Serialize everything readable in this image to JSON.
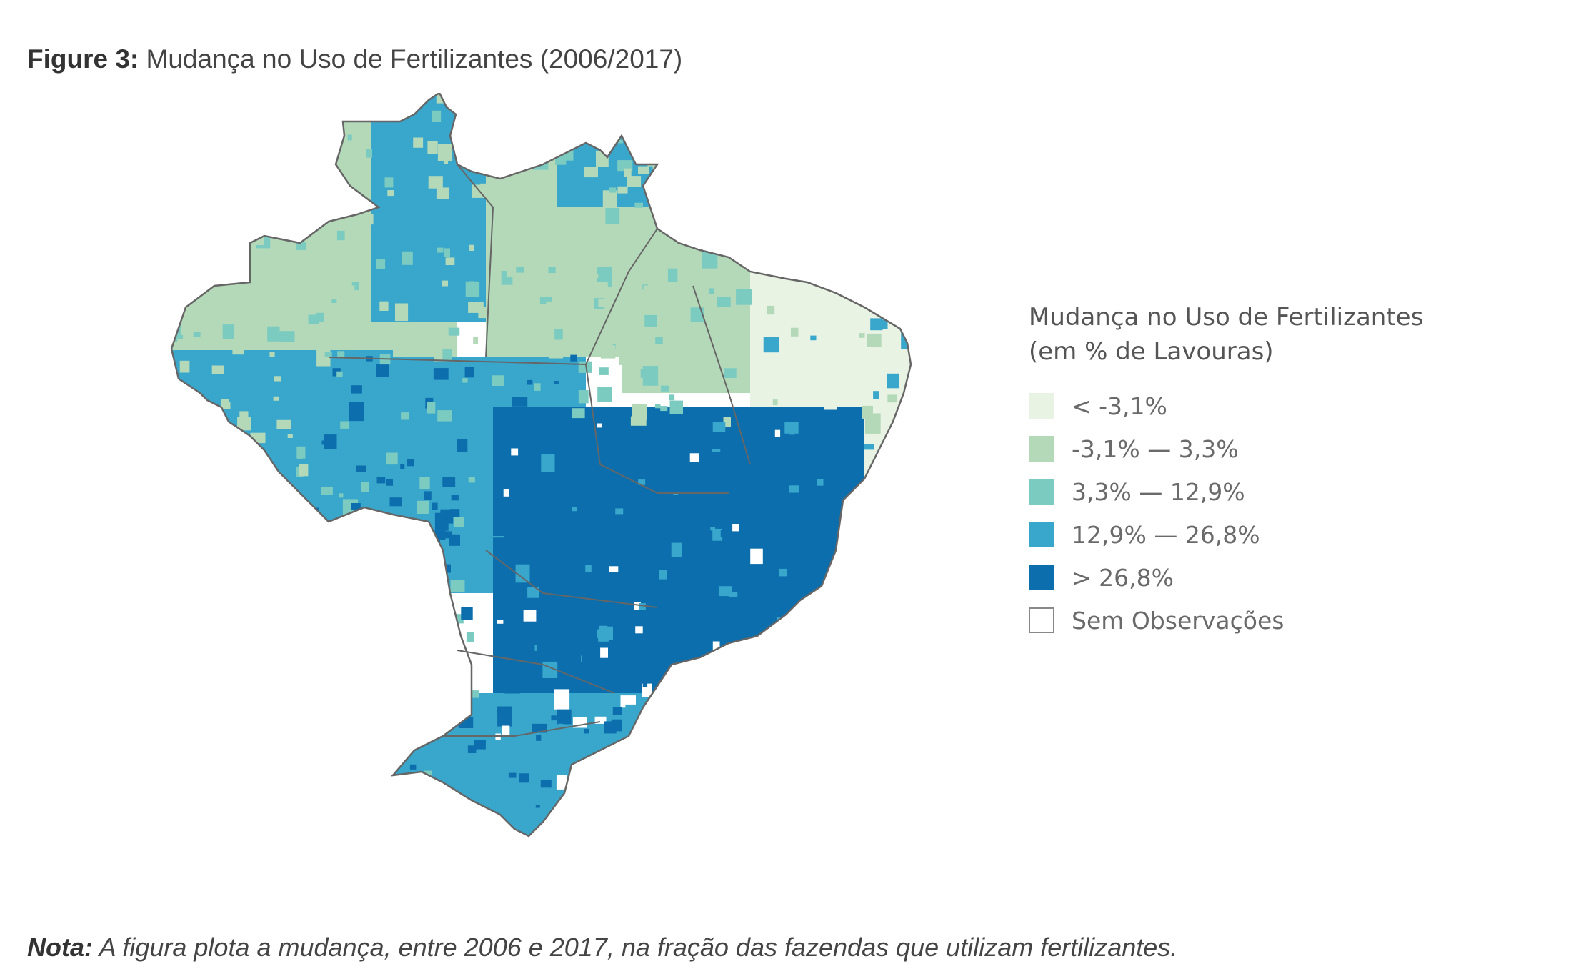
{
  "figure": {
    "label": "Figure 3:",
    "title": "Mudança no Uso de Fertilizantes (2006/2017)"
  },
  "legend": {
    "title_line1": "Mudança no Uso de Fertilizantes",
    "title_line2": "(em % de Lavouras)",
    "items": [
      {
        "label": "< -3,1%",
        "color": "#e8f3e4"
      },
      {
        "label": "-3,1% — 3,3%",
        "color": "#b4d9b9"
      },
      {
        "label": "3,3% — 12,9%",
        "color": "#7ccbc1"
      },
      {
        "label": "12,9% — 26,8%",
        "color": "#39a6cc"
      },
      {
        "label": "> 26,8%",
        "color": "#0c6ead"
      },
      {
        "label": "Sem Observações",
        "color": "#ffffff"
      }
    ]
  },
  "note": {
    "label": "Nota:",
    "text": " A figura plota a mudança, entre 2006 e 2017, na fração das fazendas que utilizam fertilizantes."
  },
  "map": {
    "border_color": "#666666",
    "regions": [
      {
        "name": "amazonas-west",
        "class": 1
      },
      {
        "name": "roraima",
        "class": 3
      },
      {
        "name": "para",
        "class": 1
      },
      {
        "name": "amapa",
        "class": 3
      },
      {
        "name": "acre-rondonia",
        "class": 3
      },
      {
        "name": "mato-grosso",
        "class": 3
      },
      {
        "name": "maranhao-piaui",
        "class": 1
      },
      {
        "name": "northeast",
        "class": 0
      },
      {
        "name": "center-south",
        "class": 4
      },
      {
        "name": "south",
        "class": 3
      }
    ]
  }
}
